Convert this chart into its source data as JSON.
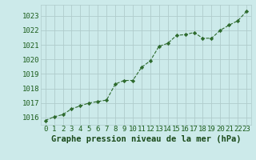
{
  "x": [
    0,
    1,
    2,
    3,
    4,
    5,
    6,
    7,
    8,
    9,
    10,
    11,
    12,
    13,
    14,
    15,
    16,
    17,
    18,
    19,
    20,
    21,
    22,
    23
  ],
  "y": [
    1015.8,
    1016.05,
    1016.2,
    1016.6,
    1016.8,
    1017.0,
    1017.1,
    1017.2,
    1018.3,
    1018.55,
    1018.55,
    1019.45,
    1019.9,
    1020.9,
    1021.1,
    1021.65,
    1021.7,
    1021.85,
    1021.45,
    1021.45,
    1022.0,
    1022.35,
    1022.65,
    1023.3
  ],
  "line_color": "#2d6a2d",
  "marker_color": "#2d6a2d",
  "bg_color": "#cceaea",
  "grid_color": "#b0cccc",
  "outer_bg": "#cceaea",
  "xlabel": "Graphe pression niveau de la mer (hPa)",
  "xlabel_color": "#1a4a1a",
  "tick_label_color": "#1a5c1a",
  "ylim": [
    1015.5,
    1023.75
  ],
  "yticks": [
    1016,
    1017,
    1018,
    1019,
    1020,
    1021,
    1022,
    1023
  ],
  "xticks": [
    0,
    1,
    2,
    3,
    4,
    5,
    6,
    7,
    8,
    9,
    10,
    11,
    12,
    13,
    14,
    15,
    16,
    17,
    18,
    19,
    20,
    21,
    22,
    23
  ],
  "font_size_ticks": 6.5,
  "font_size_xlabel": 7.5
}
